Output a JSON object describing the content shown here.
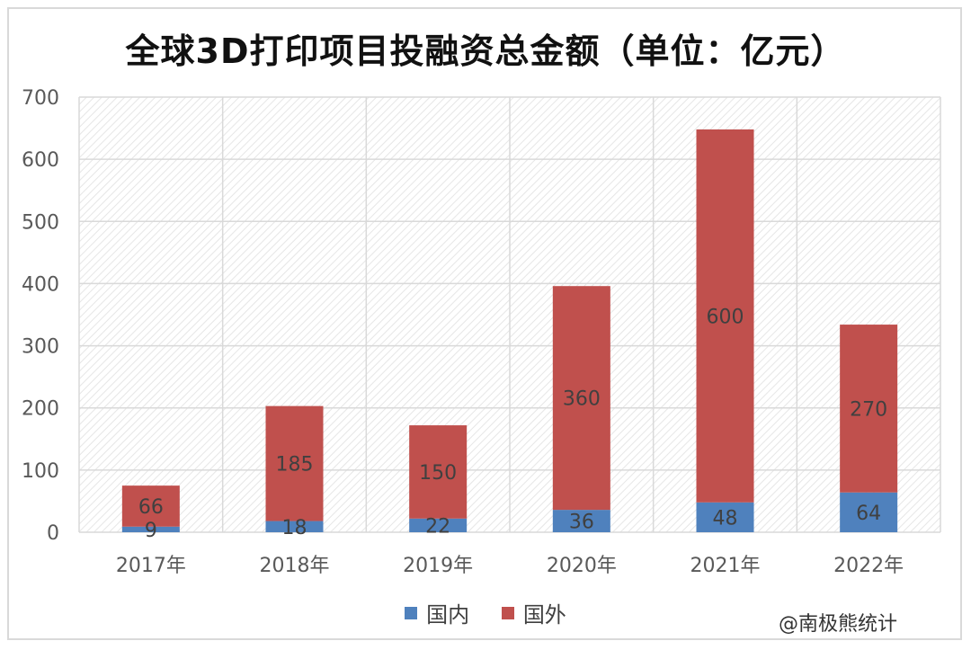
{
  "chart_data": {
    "type": "bar",
    "stacked": true,
    "title": "全球3D打印项目投融资总金额（单位：亿元）",
    "categories": [
      "2017年",
      "2018年",
      "2019年",
      "2020年",
      "2021年",
      "2022年"
    ],
    "series": [
      {
        "name": "国内",
        "color": "#4f81bd",
        "values": [
          9,
          18,
          22,
          36,
          48,
          64
        ]
      },
      {
        "name": "国外",
        "color": "#c0504d",
        "values": [
          66,
          185,
          150,
          360,
          600,
          270
        ]
      }
    ],
    "ylim": [
      0,
      700
    ],
    "yticks": [
      0,
      100,
      200,
      300,
      400,
      500,
      600,
      700
    ],
    "grid": true,
    "legend_position": "bottom"
  },
  "watermark": "@南极熊统计"
}
